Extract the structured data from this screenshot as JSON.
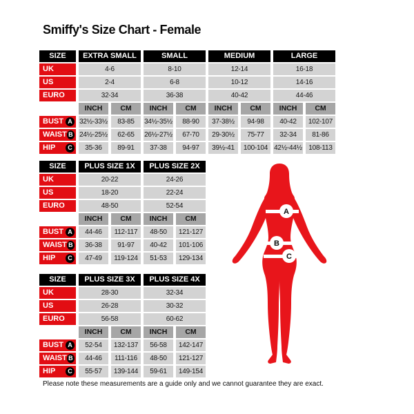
{
  "title": "Smiffy's Size Chart - Female",
  "note": "Please note these measurements are a guide only and we cannot guarantee they are exact.",
  "colors": {
    "label_red": "#e20d13",
    "figure_red": "#e8151b",
    "cell_gray": "#d3d3d3",
    "unit_gray": "#a6a6a6",
    "header_black": "#000000"
  },
  "tables": [
    {
      "size_header": "SIZE",
      "columns": [
        "EXTRA SMALL",
        "SMALL",
        "MEDIUM",
        "LARGE"
      ],
      "unit_headers": [
        "INCH",
        "CM"
      ],
      "region_rows": [
        {
          "label": "UK",
          "values": [
            "4-6",
            "8-10",
            "12-14",
            "16-18"
          ]
        },
        {
          "label": "US",
          "values": [
            "2-4",
            "6-8",
            "10-12",
            "14-16"
          ]
        },
        {
          "label": "EURO",
          "values": [
            "32-34",
            "36-38",
            "40-42",
            "44-46"
          ]
        }
      ],
      "measure_rows": [
        {
          "label": "BUST",
          "marker": "A",
          "values": [
            "32½-33½",
            "83-85",
            "34½-35½",
            "88-90",
            "37-38½",
            "94-98",
            "40-42",
            "102-107"
          ]
        },
        {
          "label": "WAIST",
          "marker": "B",
          "values": [
            "24½-25½",
            "62-65",
            "26½-27½",
            "67-70",
            "29-30½",
            "75-77",
            "32-34",
            "81-86"
          ]
        },
        {
          "label": "HIP",
          "marker": "C",
          "values": [
            "35-36",
            "89-91",
            "37-38",
            "94-97",
            "39½-41",
            "100-104",
            "42½-44½",
            "108-113"
          ]
        }
      ]
    },
    {
      "size_header": "SIZE",
      "columns": [
        "PLUS SIZE 1X",
        "PLUS SIZE 2X"
      ],
      "unit_headers": [
        "INCH",
        "CM"
      ],
      "region_rows": [
        {
          "label": "UK",
          "values": [
            "20-22",
            "24-26"
          ]
        },
        {
          "label": "US",
          "values": [
            "18-20",
            "22-24"
          ]
        },
        {
          "label": "EURO",
          "values": [
            "48-50",
            "52-54"
          ]
        }
      ],
      "measure_rows": [
        {
          "label": "BUST",
          "marker": "A",
          "values": [
            "44-46",
            "112-117",
            "48-50",
            "121-127"
          ]
        },
        {
          "label": "WAIST",
          "marker": "B",
          "values": [
            "36-38",
            "91-97",
            "40-42",
            "101-106"
          ]
        },
        {
          "label": "HIP",
          "marker": "C",
          "values": [
            "47-49",
            "119-124",
            "51-53",
            "129-134"
          ]
        }
      ]
    },
    {
      "size_header": "SIZE",
      "columns": [
        "PLUS SIZE 3X",
        "PLUS SIZE 4X"
      ],
      "unit_headers": [
        "INCH",
        "CM"
      ],
      "region_rows": [
        {
          "label": "UK",
          "values": [
            "28-30",
            "32-34"
          ]
        },
        {
          "label": "US",
          "values": [
            "26-28",
            "30-32"
          ]
        },
        {
          "label": "EURO",
          "values": [
            "56-58",
            "60-62"
          ]
        }
      ],
      "measure_rows": [
        {
          "label": "BUST",
          "marker": "A",
          "values": [
            "52-54",
            "132-137",
            "56-58",
            "142-147"
          ]
        },
        {
          "label": "WAIST",
          "marker": "B",
          "values": [
            "44-46",
            "111-116",
            "48-50",
            "121-127"
          ]
        },
        {
          "label": "HIP",
          "marker": "C",
          "values": [
            "55-57",
            "139-144",
            "59-61",
            "149-154"
          ]
        }
      ]
    }
  ],
  "figure": {
    "markers": [
      "A",
      "B",
      "C"
    ]
  }
}
